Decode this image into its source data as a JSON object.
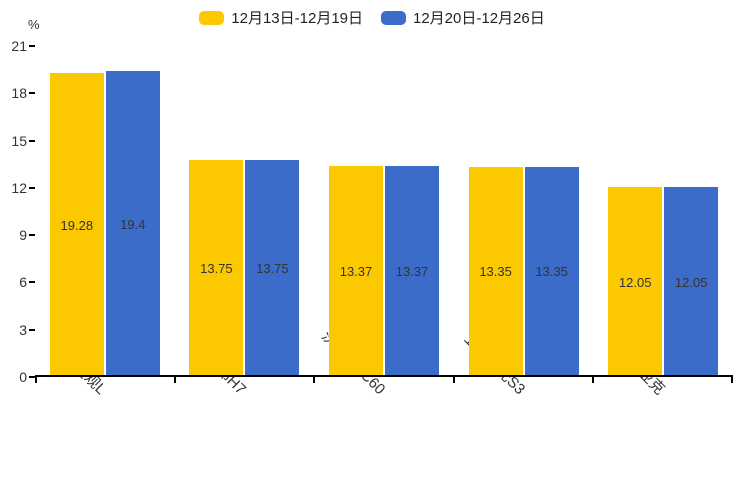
{
  "page": {
    "background": "#ffffff",
    "axis_color": "#000000",
    "text_color": "#333333"
  },
  "legend": {
    "position": "top-center",
    "items": [
      {
        "label": "12月13日-12月19日",
        "color": "#FCC800"
      },
      {
        "label": "12月20日-12月26日",
        "color": "#3B6CC9"
      }
    ]
  },
  "chart_data": {
    "type": "bar",
    "categories": [
      "途观L",
      "哈弗H7",
      "沃尔沃XC60",
      "五菱宏光S3",
      "柯迪亚克"
    ],
    "series": [
      {
        "name": "12月13日-12月19日",
        "color": "#FCC800",
        "values": [
          19.28,
          13.75,
          13.37,
          13.35,
          12.05
        ]
      },
      {
        "name": "12月20日-12月26日",
        "color": "#3B6CC9",
        "values": [
          19.4,
          13.75,
          13.37,
          13.35,
          12.05
        ]
      }
    ],
    "xlabel": "",
    "ylabel": "%",
    "ylim": [
      0,
      21
    ],
    "yticks": [
      0,
      3,
      6,
      9,
      12,
      15,
      18,
      21
    ],
    "grid": false,
    "legend_position": "top",
    "value_labels_inside_bars": true,
    "xtick_rotation": 45
  }
}
